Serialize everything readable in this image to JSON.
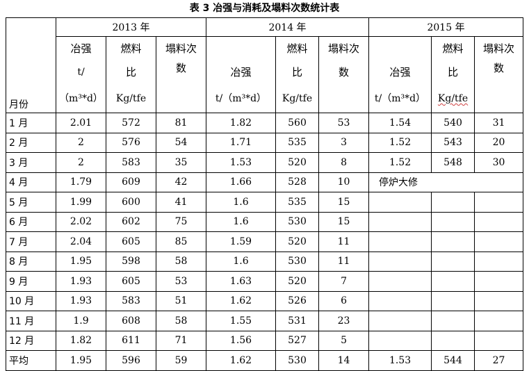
{
  "title": "表 3  冶强与消耗及塌料次数统计表",
  "header": {
    "month_label": "月份",
    "years": [
      "2013 年",
      "2014 年",
      "2015 年"
    ],
    "metrics": [
      {
        "line1": "冶强",
        "line2": "t/",
        "line3": "（m³*d）"
      },
      {
        "line1": "燃料",
        "line2": "比",
        "line3": "Kg/tfe"
      },
      {
        "line1": "塌料次",
        "line2": "数",
        "line3": ""
      }
    ],
    "metrics_2014": [
      {
        "line1": "冶强",
        "line2": "t/（m³*d）"
      },
      {
        "line1": "燃料",
        "line2": "比",
        "line3": "Kg/tfe"
      },
      {
        "line1": "塌料次",
        "line2": "数"
      }
    ]
  },
  "rows": [
    {
      "month": "1 月",
      "y2013": [
        "2.01",
        "572",
        "81"
      ],
      "y2014": [
        "1.82",
        "560",
        "53"
      ],
      "y2015": [
        "1.54",
        "540",
        "31"
      ]
    },
    {
      "month": "2 月",
      "y2013": [
        "2",
        "576",
        "54"
      ],
      "y2014": [
        "1.71",
        "535",
        "3"
      ],
      "y2015": [
        "1.52",
        "543",
        "20"
      ]
    },
    {
      "month": "3 月",
      "y2013": [
        "2",
        "583",
        "35"
      ],
      "y2014": [
        "1.53",
        "520",
        "8"
      ],
      "y2015": [
        "1.52",
        "548",
        "30"
      ]
    },
    {
      "month": "4 月",
      "y2013": [
        "1.79",
        "609",
        "42"
      ],
      "y2014": [
        "1.66",
        "528",
        "10"
      ],
      "y2015": [
        "停炉大修",
        "",
        ""
      ]
    },
    {
      "month": "5 月",
      "y2013": [
        "1.99",
        "600",
        "41"
      ],
      "y2014": [
        "1.6",
        "535",
        "15"
      ],
      "y2015": [
        "",
        "",
        ""
      ]
    },
    {
      "month": "6 月",
      "y2013": [
        "2.02",
        "602",
        "75"
      ],
      "y2014": [
        "1.6",
        "530",
        "15"
      ],
      "y2015": [
        "",
        "",
        ""
      ]
    },
    {
      "month": "7 月",
      "y2013": [
        "2.04",
        "605",
        "85"
      ],
      "y2014": [
        "1.59",
        "520",
        "11"
      ],
      "y2015": [
        "",
        "",
        ""
      ]
    },
    {
      "month": "8 月",
      "y2013": [
        "1.95",
        "598",
        "58"
      ],
      "y2014": [
        "1.6",
        "530",
        "11"
      ],
      "y2015": [
        "",
        "",
        ""
      ]
    },
    {
      "month": "9 月",
      "y2013": [
        "1.93",
        "605",
        "53"
      ],
      "y2014": [
        "1.63",
        "520",
        "7"
      ],
      "y2015": [
        "",
        "",
        ""
      ]
    },
    {
      "month": "10 月",
      "y2013": [
        "1.93",
        "583",
        "51"
      ],
      "y2014": [
        "1.62",
        "526",
        "6"
      ],
      "y2015": [
        "",
        "",
        ""
      ]
    },
    {
      "month": "11 月",
      "y2013": [
        "1.9",
        "608",
        "58"
      ],
      "y2014": [
        "1.55",
        "531",
        "23"
      ],
      "y2015": [
        "",
        "",
        ""
      ]
    },
    {
      "month": "12 月",
      "y2013": [
        "1.82",
        "611",
        "71"
      ],
      "y2014": [
        "1.56",
        "527",
        "5"
      ],
      "y2015": [
        "",
        "",
        ""
      ]
    },
    {
      "month": "平均",
      "y2013": [
        "1.95",
        "596",
        "59"
      ],
      "y2014": [
        "1.62",
        "530",
        "14"
      ],
      "y2015": [
        "1.53",
        "544",
        "27"
      ]
    }
  ]
}
